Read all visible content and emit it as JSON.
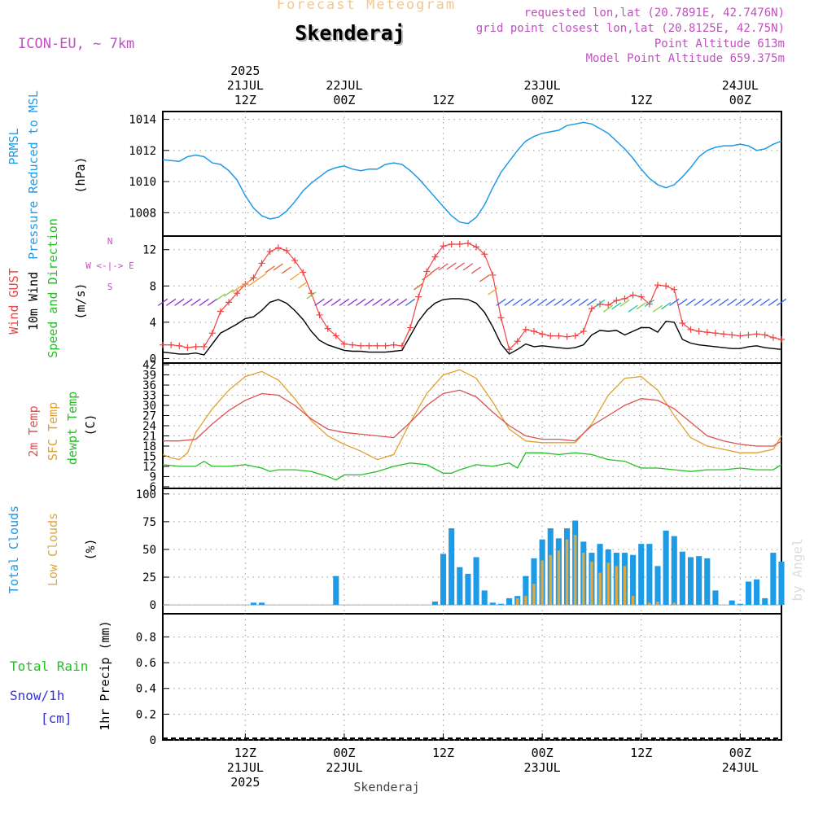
{
  "header": {
    "title": "Forecast Meteogram",
    "station": "Skenderaj",
    "model": "ICON-EU, ~ 7km",
    "requested": "requested lon,lat (20.7891E, 42.7476N)",
    "gridpoint": "grid point closest lon,lat (20.8125E, 42.75N)",
    "point_alt": "Point Altitude 613m",
    "model_alt": "Model Point Altitude 659.375m",
    "footer_station": "Skenderaj",
    "credit": "by Angel"
  },
  "colors": {
    "pressure": "#1e9be6",
    "gust": "#ee4444",
    "wind": "#000000",
    "temp2m": "#e05050",
    "sfctemp": "#e0a030",
    "dewpt": "#22c022",
    "total_clouds": "#1e9be6",
    "low_clouds": "#d8a848",
    "rain": "#22c022",
    "snow": "#3333dd",
    "meta": "#c050c0"
  },
  "time_axis": {
    "top_labels": [
      {
        "x_hours": 12,
        "lines": [
          "2025",
          "21JUL",
          "12Z"
        ]
      },
      {
        "x_hours": 24,
        "lines": [
          "22JUL",
          "00Z"
        ]
      },
      {
        "x_hours": 36,
        "lines": [
          "12Z"
        ]
      },
      {
        "x_hours": 48,
        "lines": [
          "23JUL",
          "00Z"
        ]
      },
      {
        "x_hours": 60,
        "lines": [
          "12Z"
        ]
      },
      {
        "x_hours": 72,
        "lines": [
          "24JUL",
          "00Z"
        ]
      }
    ],
    "bottom_labels": [
      {
        "x_hours": 12,
        "lines": [
          "12Z",
          "21JUL",
          "2025"
        ]
      },
      {
        "x_hours": 24,
        "lines": [
          "00Z",
          "22JUL"
        ]
      },
      {
        "x_hours": 36,
        "lines": [
          "12Z"
        ]
      },
      {
        "x_hours": 48,
        "lines": [
          "00Z",
          "23JUL"
        ]
      },
      {
        "x_hours": 60,
        "lines": [
          "12Z"
        ]
      },
      {
        "x_hours": 72,
        "lines": [
          "00Z",
          "24JUL"
        ]
      }
    ],
    "start_hour": 2,
    "end_hour": 77
  },
  "chart_data": [
    {
      "type": "line",
      "panel": "pressure",
      "labels": [
        "PRMSL",
        "Pressure Reduced to MSL"
      ],
      "unit_label": "(hPa)",
      "ylim": [
        1006.5,
        1014.5
      ],
      "yticks": [
        1008,
        1010,
        1012,
        1014
      ],
      "series": [
        {
          "name": "PRMSL",
          "x": [
            2,
            4,
            5,
            6,
            7,
            8,
            9,
            10,
            11,
            12,
            13,
            14,
            15,
            16,
            17,
            18,
            19,
            20,
            21,
            22,
            23,
            24,
            25,
            26,
            27,
            28,
            29,
            30,
            31,
            32,
            33,
            34,
            35,
            36,
            37,
            38,
            39,
            40,
            41,
            42,
            43,
            44,
            45,
            46,
            47,
            48,
            49,
            50,
            51,
            52,
            53,
            54,
            55,
            56,
            57,
            58,
            59,
            60,
            61,
            62,
            63,
            64,
            65,
            66,
            67,
            68,
            69,
            70,
            71,
            72,
            73,
            74,
            75,
            76,
            77
          ],
          "y": [
            1011.4,
            1011.3,
            1011.6,
            1011.7,
            1011.6,
            1011.2,
            1011.1,
            1010.7,
            1010.1,
            1009.1,
            1008.3,
            1007.8,
            1007.6,
            1007.7,
            1008.1,
            1008.7,
            1009.4,
            1009.9,
            1010.3,
            1010.7,
            1010.9,
            1011.0,
            1010.8,
            1010.7,
            1010.8,
            1010.8,
            1011.1,
            1011.2,
            1011.1,
            1010.7,
            1010.2,
            1009.6,
            1009.0,
            1008.4,
            1007.8,
            1007.4,
            1007.3,
            1007.7,
            1008.5,
            1009.6,
            1010.6,
            1011.3,
            1012.0,
            1012.6,
            1012.9,
            1013.1,
            1013.2,
            1013.3,
            1013.6,
            1013.7,
            1013.8,
            1013.7,
            1013.4,
            1013.1,
            1012.6,
            1012.1,
            1011.5,
            1010.8,
            1010.2,
            1009.8,
            1009.6,
            1009.8,
            1010.3,
            1010.9,
            1011.6,
            1012.0,
            1012.2,
            1012.3,
            1012.3,
            1012.4,
            1012.3,
            1012.0,
            1012.1,
            1012.4,
            1012.6
          ]
        }
      ]
    },
    {
      "type": "line",
      "panel": "wind",
      "labels": [
        "Wind GUST",
        "10m Wind",
        "Speed and Direction"
      ],
      "unit_label": "(m/s)",
      "compass": [
        "N",
        "W <-|-> E",
        "S"
      ],
      "ylim": [
        -0.5,
        13.5
      ],
      "yticks": [
        0,
        4,
        8,
        12
      ],
      "series": [
        {
          "name": "Wind GUST",
          "x": [
            2,
            3,
            4,
            5,
            6,
            7,
            8,
            9,
            10,
            11,
            12,
            13,
            14,
            15,
            16,
            17,
            18,
            19,
            20,
            21,
            22,
            23,
            24,
            25,
            26,
            27,
            28,
            29,
            30,
            31,
            32,
            33,
            34,
            35,
            36,
            37,
            38,
            39,
            40,
            41,
            42,
            43,
            44,
            45,
            46,
            47,
            48,
            49,
            50,
            51,
            52,
            53,
            54,
            55,
            56,
            57,
            58,
            59,
            60,
            61,
            62,
            63,
            64,
            65,
            66,
            67,
            68,
            69,
            70,
            71,
            72,
            73,
            74,
            75,
            76,
            77
          ],
          "y": [
            1.5,
            1.5,
            1.4,
            1.2,
            1.3,
            1.3,
            2.8,
            5.2,
            6.2,
            7.2,
            8.2,
            8.9,
            10.5,
            11.8,
            12.2,
            11.9,
            10.8,
            9.5,
            7.2,
            4.8,
            3.3,
            2.5,
            1.6,
            1.5,
            1.4,
            1.4,
            1.4,
            1.4,
            1.5,
            1.4,
            3.4,
            6.8,
            9.6,
            11.2,
            12.4,
            12.6,
            12.6,
            12.7,
            12.3,
            11.5,
            9.2,
            4.5,
            1.0,
            1.9,
            3.2,
            3.0,
            2.7,
            2.5,
            2.5,
            2.4,
            2.5,
            3.0,
            5.5,
            6.0,
            5.9,
            6.4,
            6.6,
            7.0,
            6.8,
            6.0,
            8.1,
            8.0,
            7.6,
            3.9,
            3.2,
            3.0,
            2.9,
            2.8,
            2.7,
            2.6,
            2.5,
            2.6,
            2.7,
            2.6,
            2.3,
            2.1
          ]
        },
        {
          "name": "10m Wind",
          "x": [
            2,
            3,
            4,
            5,
            6,
            7,
            8,
            9,
            10,
            11,
            12,
            13,
            14,
            15,
            16,
            17,
            18,
            19,
            20,
            21,
            22,
            23,
            24,
            25,
            26,
            27,
            28,
            29,
            30,
            31,
            32,
            33,
            34,
            35,
            36,
            37,
            38,
            39,
            40,
            41,
            42,
            43,
            44,
            45,
            46,
            47,
            48,
            49,
            50,
            51,
            52,
            53,
            54,
            55,
            56,
            57,
            58,
            59,
            60,
            61,
            62,
            63,
            64,
            65,
            66,
            67,
            68,
            69,
            70,
            71,
            72,
            73,
            74,
            75,
            76,
            77
          ],
          "y": [
            0.7,
            0.6,
            0.5,
            0.5,
            0.6,
            0.4,
            1.6,
            2.8,
            3.3,
            3.8,
            4.4,
            4.6,
            5.3,
            6.2,
            6.5,
            6.1,
            5.3,
            4.3,
            3.0,
            2.0,
            1.5,
            1.2,
            0.9,
            0.8,
            0.8,
            0.7,
            0.7,
            0.7,
            0.8,
            0.9,
            2.5,
            4.1,
            5.3,
            6.1,
            6.5,
            6.6,
            6.6,
            6.5,
            6.1,
            5.1,
            3.5,
            1.6,
            0.5,
            1.0,
            1.6,
            1.3,
            1.4,
            1.3,
            1.2,
            1.1,
            1.2,
            1.5,
            2.6,
            3.1,
            3.0,
            3.1,
            2.6,
            3.0,
            3.4,
            3.4,
            2.9,
            4.1,
            4.0,
            2.1,
            1.7,
            1.5,
            1.4,
            1.3,
            1.2,
            1.1,
            1.1,
            1.3,
            1.4,
            1.2,
            1.1,
            1.0
          ]
        }
      ]
    },
    {
      "type": "line",
      "panel": "temperature",
      "labels": [
        "2m Temp",
        "SFC Temp",
        "dewpt Temp"
      ],
      "unit_label": "(C)",
      "ylim": [
        5.5,
        42.5
      ],
      "yticks": [
        6,
        9,
        12,
        15,
        18,
        21,
        24,
        27,
        30,
        33,
        36,
        39,
        42
      ],
      "series": [
        {
          "name": "2m Temp",
          "x": [
            2,
            4,
            6,
            8,
            10,
            12,
            14,
            16,
            18,
            20,
            22,
            24,
            26,
            28,
            30,
            32,
            34,
            36,
            38,
            40,
            42,
            44,
            46,
            48,
            50,
            52,
            54,
            56,
            58,
            60,
            62,
            64,
            66,
            68,
            70,
            72,
            74,
            76,
            77
          ],
          "y": [
            19.5,
            19.5,
            20.0,
            24.5,
            28.5,
            31.5,
            33.5,
            33.0,
            30.0,
            26.0,
            23.0,
            22.0,
            21.5,
            21.0,
            20.5,
            25.0,
            30.0,
            33.5,
            34.5,
            32.5,
            28.0,
            24.0,
            21.0,
            20.0,
            20.0,
            19.5,
            24.0,
            27.0,
            30.0,
            32.0,
            31.5,
            29.0,
            25.0,
            21.0,
            19.5,
            18.5,
            18.0,
            18.0,
            19.5
          ]
        },
        {
          "name": "SFC Temp",
          "x": [
            2,
            3,
            4,
            5,
            6,
            8,
            10,
            12,
            14,
            16,
            18,
            20,
            22,
            24,
            26,
            28,
            30,
            32,
            34,
            36,
            38,
            40,
            42,
            44,
            46,
            48,
            50,
            52,
            54,
            56,
            58,
            60,
            62,
            64,
            66,
            68,
            70,
            72,
            74,
            76,
            77
          ],
          "y": [
            15.5,
            14.5,
            14.0,
            16.0,
            22.0,
            29.0,
            34.5,
            38.5,
            40.0,
            37.5,
            32.0,
            25.5,
            21.0,
            18.5,
            16.5,
            14.0,
            15.5,
            25.0,
            33.5,
            39.0,
            40.5,
            38.0,
            31.0,
            23.0,
            19.5,
            19.0,
            19.0,
            19.0,
            24.5,
            33.0,
            38.0,
            38.5,
            34.5,
            27.0,
            20.5,
            18.0,
            17.0,
            16.0,
            16.0,
            17.0,
            21.0
          ]
        },
        {
          "name": "dewpt Temp",
          "x": [
            2,
            4,
            6,
            7,
            8,
            10,
            12,
            14,
            15,
            16,
            18,
            20,
            22,
            23,
            24,
            26,
            28,
            30,
            32,
            34,
            36,
            37,
            38,
            40,
            42,
            44,
            45,
            46,
            48,
            50,
            52,
            54,
            56,
            58,
            60,
            62,
            64,
            66,
            68,
            70,
            72,
            74,
            76,
            77
          ],
          "y": [
            12.5,
            12.0,
            12.0,
            13.5,
            12.0,
            12.0,
            12.5,
            11.5,
            10.5,
            11.0,
            11.0,
            10.5,
            9.0,
            8.0,
            9.5,
            9.5,
            10.5,
            12.0,
            13.0,
            12.5,
            10.0,
            10.0,
            11.0,
            12.5,
            12.0,
            13.0,
            11.5,
            16.0,
            16.0,
            15.5,
            16.0,
            15.5,
            14.0,
            13.5,
            11.5,
            11.5,
            11.0,
            10.5,
            11.0,
            11.0,
            11.5,
            11.0,
            11.0,
            12.5
          ]
        }
      ]
    },
    {
      "type": "bar",
      "panel": "clouds",
      "labels": [
        "Total Clouds",
        "Low Clouds"
      ],
      "unit_label": "(%)",
      "ylim": [
        -8,
        105
      ],
      "yticks": [
        0,
        25,
        50,
        75,
        100
      ],
      "series": [
        {
          "name": "Total Clouds",
          "x": [
            13,
            14,
            23,
            35,
            36,
            37,
            38,
            39,
            40,
            41,
            42,
            43,
            44,
            45,
            46,
            47,
            48,
            49,
            50,
            51,
            52,
            53,
            54,
            55,
            56,
            57,
            58,
            59,
            60,
            61,
            62,
            63,
            64,
            65,
            66,
            67,
            68,
            69,
            71,
            72,
            73,
            74,
            75,
            76,
            77
          ],
          "y": [
            2,
            2,
            26,
            3,
            46,
            69,
            34,
            28,
            43,
            13,
            2,
            1,
            6,
            8,
            26,
            42,
            59,
            69,
            60,
            69,
            76,
            57,
            47,
            55,
            50,
            47,
            47,
            45,
            55,
            55,
            35,
            67,
            62,
            48,
            43,
            44,
            42,
            13,
            4,
            1,
            21,
            23,
            6,
            47,
            39
          ]
        },
        {
          "name": "Low Clouds",
          "x": [
            45,
            46,
            47,
            48,
            49,
            50,
            51,
            52,
            53,
            54,
            55,
            56,
            57,
            58,
            59,
            61,
            62,
            64
          ],
          "y": [
            6,
            8,
            19,
            40,
            45,
            49,
            59,
            63,
            47,
            39,
            29,
            38,
            35,
            35,
            8,
            2,
            3,
            2
          ]
        }
      ]
    },
    {
      "type": "bar",
      "panel": "precip",
      "labels": [
        "Total  Rain",
        "Snow/1h",
        "[cm]"
      ],
      "unit_label": "1hr Precip (mm)",
      "ylim": [
        0,
        0.98
      ],
      "yticks": [
        0,
        0.2,
        0.4,
        0.6,
        0.8
      ],
      "series": [
        {
          "name": "Total Rain",
          "x": [],
          "y": []
        }
      ]
    }
  ]
}
